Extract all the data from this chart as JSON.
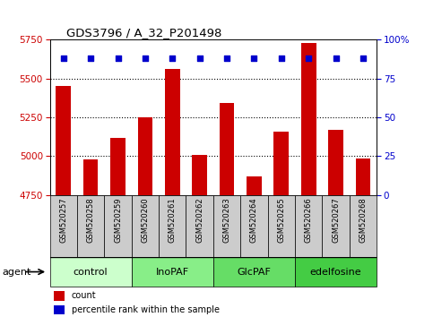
{
  "title": "GDS3796 / A_32_P201498",
  "samples": [
    "GSM520257",
    "GSM520258",
    "GSM520259",
    "GSM520260",
    "GSM520261",
    "GSM520262",
    "GSM520263",
    "GSM520264",
    "GSM520265",
    "GSM520266",
    "GSM520267",
    "GSM520268"
  ],
  "counts": [
    5450,
    4980,
    5120,
    5250,
    5560,
    5005,
    5340,
    4870,
    5160,
    5730,
    5170,
    4985
  ],
  "percentile_ranks": [
    95,
    95,
    95,
    95,
    95,
    95,
    95,
    95,
    95,
    95,
    95,
    95
  ],
  "ylim_left": [
    4750,
    5750
  ],
  "ylim_right": [
    0,
    100
  ],
  "yticks_left": [
    4750,
    5000,
    5250,
    5500,
    5750
  ],
  "yticks_right": [
    0,
    25,
    50,
    75,
    100
  ],
  "bar_color": "#cc0000",
  "dot_color": "#0000cc",
  "groups": [
    {
      "label": "control",
      "start": 0,
      "end": 3,
      "color": "#ccffcc"
    },
    {
      "label": "InoPAF",
      "start": 3,
      "end": 6,
      "color": "#88ee88"
    },
    {
      "label": "GlcPAF",
      "start": 6,
      "end": 9,
      "color": "#66dd66"
    },
    {
      "label": "edelfosine",
      "start": 9,
      "end": 12,
      "color": "#44cc44"
    }
  ],
  "sample_bg_color": "#cccccc",
  "legend_count_color": "#cc0000",
  "legend_pct_color": "#0000cc",
  "agent_label": "agent",
  "gridline_color": "black",
  "gridline_ticks": [
    5000,
    5250,
    5500
  ]
}
